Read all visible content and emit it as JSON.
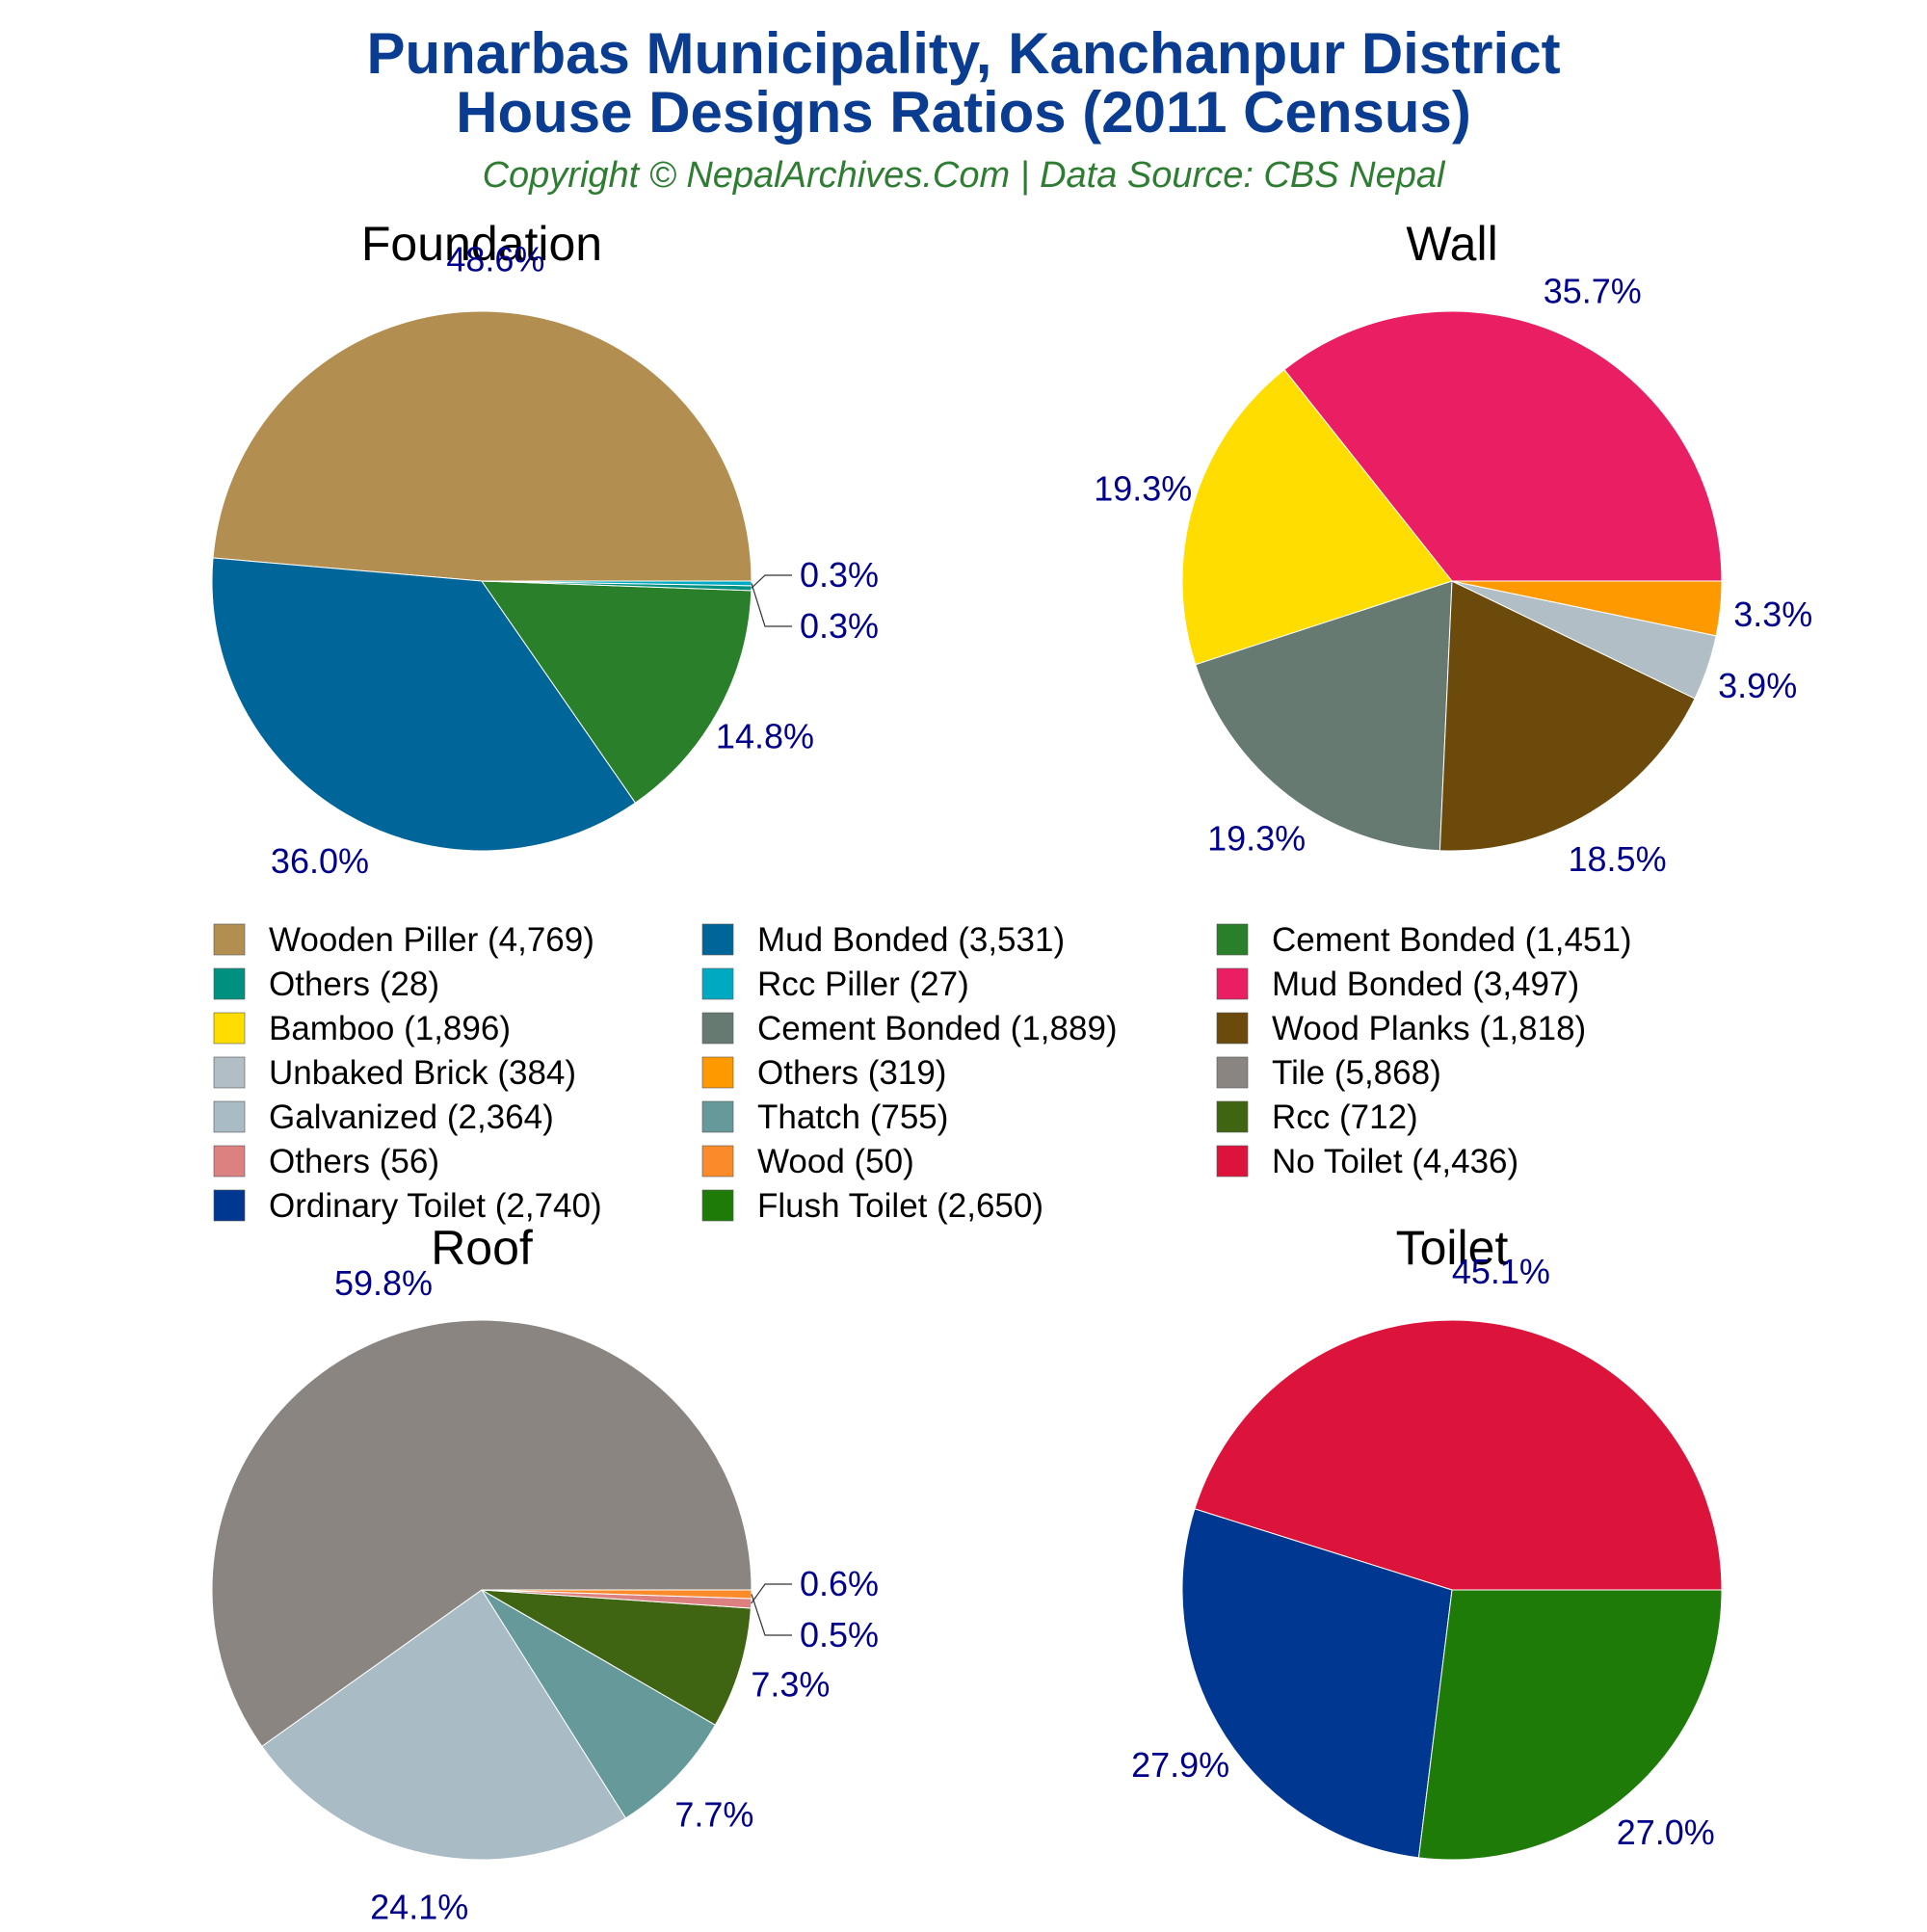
{
  "title_line1": "Punarbas Municipality, Kanchanpur District",
  "title_line2": "House Designs Ratios (2011 Census)",
  "subtitle": "Copyright © NepalArchives.Com | Data Source: CBS Nepal",
  "chart_data": [
    {
      "type": "pie",
      "title": "Foundation",
      "slices": [
        {
          "label": "Wooden Piller",
          "value": 4769,
          "percent": "48.6%",
          "color": "#b28e50"
        },
        {
          "label": "Mud Bonded",
          "value": 3531,
          "percent": "36.0%",
          "color": "#006699"
        },
        {
          "label": "Cement Bonded",
          "value": 1451,
          "percent": "14.8%",
          "color": "#2a7f2a"
        },
        {
          "label": "Others",
          "value": 28,
          "percent": "0.3%",
          "color": "#00907f"
        },
        {
          "label": "Rcc Piller",
          "value": 27,
          "percent": "0.3%",
          "color": "#00a9c2"
        }
      ]
    },
    {
      "type": "pie",
      "title": "Wall",
      "slices": [
        {
          "label": "Mud Bonded",
          "value": 3497,
          "percent": "35.7%",
          "color": "#e91e63"
        },
        {
          "label": "Bamboo",
          "value": 1896,
          "percent": "19.3%",
          "color": "#ffdd00"
        },
        {
          "label": "Cement Bonded",
          "value": 1889,
          "percent": "19.3%",
          "color": "#667a72"
        },
        {
          "label": "Wood Planks",
          "value": 1818,
          "percent": "18.5%",
          "color": "#6b4a0b"
        },
        {
          "label": "Unbaked Brick",
          "value": 384,
          "percent": "3.9%",
          "color": "#b1bec5"
        },
        {
          "label": "Others",
          "value": 319,
          "percent": "3.3%",
          "color": "#ff9900"
        }
      ]
    },
    {
      "type": "pie",
      "title": "Roof",
      "slices": [
        {
          "label": "Tile",
          "value": 5868,
          "percent": "59.8%",
          "color": "#8b8581"
        },
        {
          "label": "Galvanized",
          "value": 2364,
          "percent": "24.1%",
          "color": "#a9bbc4"
        },
        {
          "label": "Thatch",
          "value": 755,
          "percent": "7.7%",
          "color": "#669999"
        },
        {
          "label": "Rcc",
          "value": 712,
          "percent": "7.3%",
          "color": "#3f6512"
        },
        {
          "label": "Others",
          "value": 56,
          "percent": "0.6%",
          "color": "#dd8080"
        },
        {
          "label": "Wood",
          "value": 50,
          "percent": "0.5%",
          "color": "#fa8a2a"
        }
      ]
    },
    {
      "type": "pie",
      "title": "Toilet",
      "slices": [
        {
          "label": "No Toilet",
          "value": 4436,
          "percent": "45.1%",
          "color": "#dc143c"
        },
        {
          "label": "Ordinary Toilet",
          "value": 2740,
          "percent": "27.9%",
          "color": "#003791"
        },
        {
          "label": "Flush Toilet",
          "value": 2650,
          "percent": "27.0%",
          "color": "#1e7b08"
        }
      ]
    }
  ],
  "legend": [
    {
      "label": "Wooden Piller (4,769)",
      "color": "#b28e50"
    },
    {
      "label": "Mud Bonded (3,531)",
      "color": "#006699"
    },
    {
      "label": "Cement Bonded (1,451)",
      "color": "#2a7f2a"
    },
    {
      "label": "Others (28)",
      "color": "#00907f"
    },
    {
      "label": "Rcc Piller (27)",
      "color": "#00a9c2"
    },
    {
      "label": "Mud Bonded (3,497)",
      "color": "#e91e63"
    },
    {
      "label": "Bamboo (1,896)",
      "color": "#ffdd00"
    },
    {
      "label": "Cement Bonded (1,889)",
      "color": "#667a72"
    },
    {
      "label": "Wood Planks (1,818)",
      "color": "#6b4a0b"
    },
    {
      "label": "Unbaked Brick (384)",
      "color": "#b1bec5"
    },
    {
      "label": "Others (319)",
      "color": "#ff9900"
    },
    {
      "label": "Tile (5,868)",
      "color": "#8b8581"
    },
    {
      "label": "Galvanized (2,364)",
      "color": "#a9bbc4"
    },
    {
      "label": "Thatch (755)",
      "color": "#669999"
    },
    {
      "label": "Rcc (712)",
      "color": "#3f6512"
    },
    {
      "label": "Others (56)",
      "color": "#dd8080"
    },
    {
      "label": "Wood (50)",
      "color": "#fa8a2a"
    },
    {
      "label": "No Toilet (4,436)",
      "color": "#dc143c"
    },
    {
      "label": "Ordinary Toilet (2,740)",
      "color": "#003791"
    },
    {
      "label": "Flush Toilet (2,650)",
      "color": "#1e7b08"
    }
  ]
}
